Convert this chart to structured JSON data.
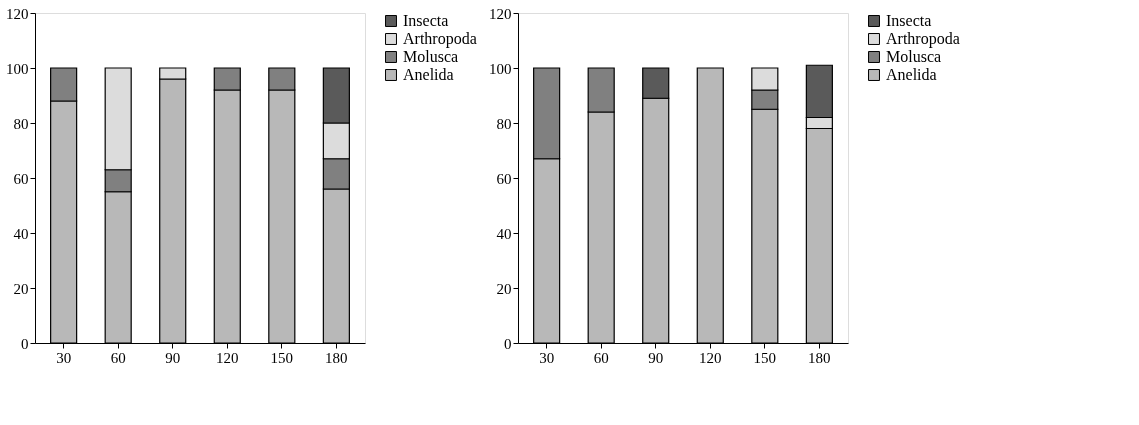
{
  "chart_data": [
    {
      "type": "bar",
      "stacked": true,
      "categories": [
        "30",
        "60",
        "90",
        "120",
        "150",
        "180"
      ],
      "ylim": [
        0,
        120
      ],
      "yticks": [
        0,
        20,
        40,
        60,
        80,
        100,
        120
      ],
      "grid": false,
      "legend": "top right",
      "series": [
        {
          "name": "Anelida",
          "color": "#b8b8b8",
          "values": [
            88,
            55,
            96,
            92,
            92,
            56
          ]
        },
        {
          "name": "Molusca",
          "color": "#808080",
          "values": [
            12,
            8,
            null,
            8,
            8,
            11
          ]
        },
        {
          "name": "Arthropoda",
          "color": "#dcdcdc",
          "values": [
            null,
            37,
            4,
            null,
            null,
            13
          ]
        },
        {
          "name": "Insecta",
          "color": "#5a5a5a",
          "values": [
            null,
            null,
            null,
            null,
            null,
            20
          ]
        }
      ]
    },
    {
      "type": "bar",
      "stacked": true,
      "categories": [
        "30",
        "60",
        "90",
        "120",
        "150",
        "180"
      ],
      "ylim": [
        0,
        120
      ],
      "yticks": [
        0,
        20,
        40,
        60,
        80,
        100,
        120
      ],
      "grid": false,
      "legend": "top right",
      "series": [
        {
          "name": "Anelida",
          "color": "#b8b8b8",
          "values": [
            67,
            84,
            89,
            100,
            85,
            78
          ]
        },
        {
          "name": "Molusca",
          "color": "#808080",
          "values": [
            33,
            16,
            null,
            null,
            7,
            null
          ]
        },
        {
          "name": "Arthropoda",
          "color": "#dcdcdc",
          "values": [
            null,
            null,
            null,
            null,
            8,
            4
          ]
        },
        {
          "name": "Insecta",
          "color": "#5a5a5a",
          "values": [
            null,
            null,
            11,
            null,
            null,
            19
          ]
        }
      ]
    }
  ]
}
